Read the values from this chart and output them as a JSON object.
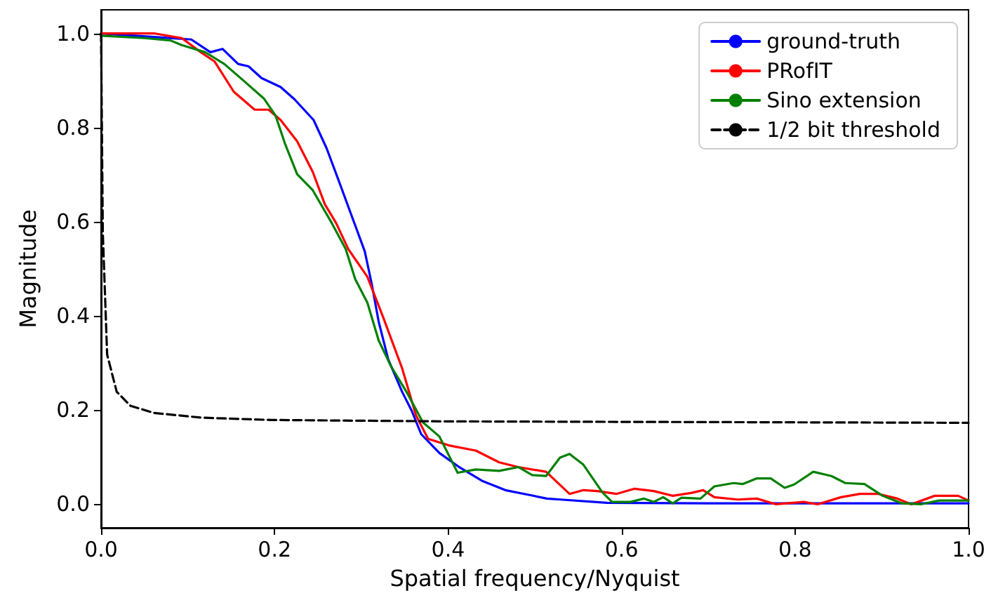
{
  "chart_data": {
    "type": "line",
    "xlabel": "Spatial frequency/Nyquist",
    "ylabel": "Magnitude",
    "xlim": [
      0,
      1
    ],
    "ylim": [
      -0.05,
      1.05
    ],
    "xticks": [
      {
        "value": 0,
        "label": "0.0"
      },
      {
        "value": 0.2,
        "label": "0.2"
      },
      {
        "value": 0.4,
        "label": "0.4"
      },
      {
        "value": 0.6,
        "label": "0.6"
      },
      {
        "value": 0.8,
        "label": "0.8"
      },
      {
        "value": 1,
        "label": "1.0"
      }
    ],
    "yticks": [
      {
        "value": 0,
        "label": "0.0"
      },
      {
        "value": 0.2,
        "label": "0.2"
      },
      {
        "value": 0.4,
        "label": "0.4"
      },
      {
        "value": 0.6,
        "label": "0.6"
      },
      {
        "value": 0.8,
        "label": "0.8"
      },
      {
        "value": 1,
        "label": "1.0"
      }
    ],
    "grid": false,
    "legend": "top right",
    "marker": "none",
    "series": [
      {
        "name": "ground-truth",
        "color": "#0000ff",
        "x": [
          0,
          0.104,
          0.126,
          0.14,
          0.158,
          0.17,
          0.185,
          0.207,
          0.223,
          0.245,
          0.26,
          0.274,
          0.29,
          0.304,
          0.312,
          0.32,
          0.331,
          0.347,
          0.358,
          0.369,
          0.39,
          0.412,
          0.439,
          0.466,
          0.493,
          0.514,
          0.53,
          0.583,
          0.7,
          0.8,
          0.9,
          1.0
        ],
        "values": [
          1.0,
          0.987,
          0.96,
          0.967,
          0.935,
          0.93,
          0.905,
          0.886,
          0.86,
          0.816,
          0.756,
          0.687,
          0.607,
          0.537,
          0.468,
          0.388,
          0.308,
          0.239,
          0.199,
          0.149,
          0.109,
          0.08,
          0.05,
          0.03,
          0.02,
          0.012,
          0.01,
          0.003,
          0.002,
          0.002,
          0.002,
          0.002
        ]
      },
      {
        "name": "PRofIT",
        "color": "#ff0000",
        "x": [
          0,
          0.061,
          0.093,
          0.115,
          0.131,
          0.153,
          0.177,
          0.193,
          0.207,
          0.226,
          0.244,
          0.258,
          0.271,
          0.285,
          0.307,
          0.325,
          0.347,
          0.363,
          0.377,
          0.401,
          0.432,
          0.459,
          0.481,
          0.513,
          0.54,
          0.556,
          0.572,
          0.594,
          0.615,
          0.637,
          0.659,
          0.68,
          0.694,
          0.707,
          0.734,
          0.756,
          0.778,
          0.81,
          0.826,
          0.853,
          0.875,
          0.896,
          0.918,
          0.934,
          0.961,
          0.988,
          1.0
        ],
        "values": [
          1.0,
          1.0,
          0.99,
          0.96,
          0.94,
          0.876,
          0.838,
          0.838,
          0.816,
          0.771,
          0.706,
          0.637,
          0.597,
          0.542,
          0.483,
          0.398,
          0.289,
          0.189,
          0.139,
          0.125,
          0.114,
          0.089,
          0.079,
          0.069,
          0.022,
          0.03,
          0.028,
          0.022,
          0.033,
          0.028,
          0.018,
          0.024,
          0.03,
          0.015,
          0.01,
          0.012,
          0.0,
          0.005,
          0.0,
          0.015,
          0.022,
          0.022,
          0.012,
          0.0,
          0.018,
          0.018,
          0.008
        ]
      },
      {
        "name": "Sino extension",
        "color": "#008000",
        "x": [
          0,
          0.05,
          0.08,
          0.093,
          0.12,
          0.142,
          0.164,
          0.188,
          0.201,
          0.212,
          0.226,
          0.244,
          0.266,
          0.282,
          0.293,
          0.307,
          0.32,
          0.334,
          0.352,
          0.371,
          0.39,
          0.411,
          0.432,
          0.459,
          0.481,
          0.497,
          0.513,
          0.529,
          0.54,
          0.556,
          0.578,
          0.589,
          0.61,
          0.626,
          0.637,
          0.648,
          0.659,
          0.669,
          0.691,
          0.707,
          0.729,
          0.74,
          0.756,
          0.772,
          0.788,
          0.799,
          0.821,
          0.842,
          0.858,
          0.88,
          0.901,
          0.923,
          0.945,
          0.966,
          1.0
        ],
        "values": [
          0.995,
          0.99,
          0.985,
          0.975,
          0.96,
          0.935,
          0.9,
          0.861,
          0.826,
          0.766,
          0.701,
          0.667,
          0.597,
          0.542,
          0.478,
          0.428,
          0.348,
          0.294,
          0.239,
          0.174,
          0.144,
          0.067,
          0.074,
          0.071,
          0.079,
          0.062,
          0.06,
          0.099,
          0.107,
          0.084,
          0.025,
          0.005,
          0.005,
          0.012,
          0.005,
          0.015,
          0.002,
          0.014,
          0.012,
          0.038,
          0.045,
          0.043,
          0.055,
          0.055,
          0.035,
          0.042,
          0.069,
          0.06,
          0.045,
          0.043,
          0.018,
          0.002,
          0.0,
          0.008,
          0.008
        ]
      },
      {
        "name": "1/2 bit threshold",
        "color": "#000000",
        "line_style": "dashed",
        "x": [
          0,
          0.002,
          0.007,
          0.018,
          0.034,
          0.061,
          0.115,
          0.196,
          0.4,
          0.6,
          0.8,
          1.0
        ],
        "values": [
          1.0,
          0.577,
          0.318,
          0.239,
          0.209,
          0.194,
          0.184,
          0.179,
          0.176,
          0.175,
          0.174,
          0.173
        ]
      }
    ]
  }
}
